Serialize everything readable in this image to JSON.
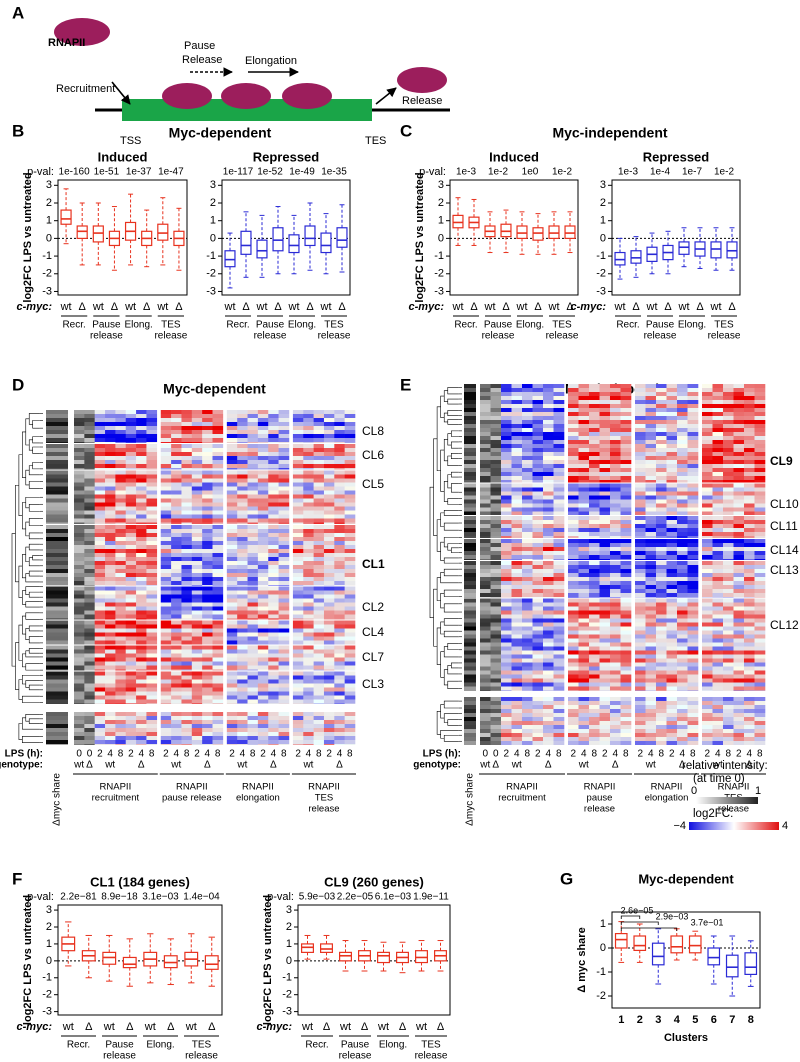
{
  "panel_labels": [
    "A",
    "B",
    "C",
    "D",
    "E",
    "F",
    "G"
  ],
  "panel_titles": {
    "B": "Myc-dependent",
    "C": "Myc-independent"
  },
  "diagram": {
    "rnapii": "RNAPII",
    "recruitment": "Recruitment",
    "pause_release": [
      "Pause",
      "Release"
    ],
    "elongation": "Elongation",
    "release": "Release",
    "tss": "TSS",
    "tes": "TES"
  },
  "chart_data": [
    {
      "type": "box",
      "title": "Induced",
      "pval_label": "p-val:",
      "pvals": [
        "1e-160",
        "1e-51",
        "1e-37",
        "1e-47"
      ],
      "ylabel": "log2FC LPS vs untreated",
      "genotype_label": "c-myc:",
      "color": "#e8321e",
      "categories": [
        "wt",
        "Δ",
        "wt",
        "Δ",
        "wt",
        "Δ",
        "wt",
        "Δ"
      ],
      "groups": [
        [
          "Recr."
        ],
        [
          "Pause",
          "release"
        ],
        [
          "Elong."
        ],
        [
          "TES",
          "release"
        ]
      ],
      "ylim": [
        -3.2,
        3.3
      ],
      "yticks": [
        3,
        2,
        1,
        0,
        -1,
        -2,
        -3
      ],
      "boxes": [
        [
          -0.3,
          0.8,
          1.1,
          1.6,
          2.8
        ],
        [
          -1.5,
          0,
          0.4,
          0.7,
          2.0
        ],
        [
          -1.5,
          -0.2,
          0.3,
          0.7,
          2.0
        ],
        [
          -1.8,
          -0.4,
          0,
          0.4,
          1.8
        ],
        [
          -1.5,
          -0.1,
          0.4,
          0.9,
          2.5
        ],
        [
          -1.6,
          -0.4,
          0,
          0.4,
          1.6
        ],
        [
          -1.5,
          -0.1,
          0.3,
          0.8,
          2.3
        ],
        [
          -1.8,
          -0.4,
          0,
          0.4,
          1.7
        ]
      ]
    },
    {
      "type": "box",
      "title": "Repressed",
      "pvals": [
        "1e-117",
        "1e-52",
        "1e-49",
        "1e-35"
      ],
      "color": "#2a2ad6",
      "categories": [
        "wt",
        "Δ",
        "wt",
        "Δ",
        "wt",
        "Δ",
        "wt",
        "Δ"
      ],
      "groups": [
        [
          "Recr."
        ],
        [
          "Pause",
          "release"
        ],
        [
          "Elong."
        ],
        [
          "TES",
          "release"
        ]
      ],
      "ylim": [
        -3.2,
        3.3
      ],
      "yticks": [
        3,
        2,
        1,
        0,
        -1,
        -2,
        -3
      ],
      "boxes": [
        [
          -2.8,
          -1.6,
          -1.2,
          -0.7,
          0.3
        ],
        [
          -2.2,
          -0.9,
          -0.4,
          0.4,
          1.5
        ],
        [
          -2.2,
          -1.1,
          -0.7,
          -0.1,
          1.3
        ],
        [
          -2.0,
          -0.7,
          -0.1,
          0.6,
          1.8
        ],
        [
          -2.0,
          -0.8,
          -0.4,
          0.2,
          1.3
        ],
        [
          -1.8,
          -0.4,
          0,
          0.7,
          2.0
        ],
        [
          -2.0,
          -0.8,
          -0.4,
          0.3,
          1.4
        ],
        [
          -1.9,
          -0.5,
          -0.1,
          0.6,
          1.9
        ]
      ]
    },
    {
      "type": "box",
      "title": "Induced",
      "pval_label": "p-val:",
      "pvals": [
        "1e-3",
        "1e-2",
        "1e0",
        "1e-2"
      ],
      "ylabel": "log2FC LPS vs untreated",
      "genotype_label": "c-myc:",
      "color": "#e8321e",
      "categories": [
        "wt",
        "Δ",
        "wt",
        "Δ",
        "wt",
        "Δ",
        "wt",
        "Δ"
      ],
      "groups": [
        [
          "Recr."
        ],
        [
          "Pause",
          "release"
        ],
        [
          "Elong."
        ],
        [
          "TES",
          "release"
        ]
      ],
      "ylim": [
        -3.2,
        3.3
      ],
      "yticks": [
        3,
        2,
        1,
        0,
        -1,
        -2,
        -3
      ],
      "boxes": [
        [
          -0.4,
          0.6,
          0.9,
          1.3,
          2.3
        ],
        [
          -0.4,
          0.6,
          0.9,
          1.2,
          2.2
        ],
        [
          -0.8,
          0.1,
          0.4,
          0.7,
          1.5
        ],
        [
          -0.8,
          0.1,
          0.4,
          0.8,
          1.6
        ],
        [
          -0.9,
          0,
          0.3,
          0.7,
          1.5
        ],
        [
          -0.9,
          -0.1,
          0.3,
          0.6,
          1.4
        ],
        [
          -0.9,
          0,
          0.3,
          0.7,
          1.5
        ],
        [
          -0.8,
          0,
          0.3,
          0.7,
          1.5
        ]
      ]
    },
    {
      "type": "box",
      "title": "Repressed",
      "pvals": [
        "1e-3",
        "1e-4",
        "1e-7",
        "1e-2"
      ],
      "genotype_label": "c-myc:",
      "color": "#2a2ad6",
      "categories": [
        "wt",
        "Δ",
        "wt",
        "Δ",
        "wt",
        "Δ",
        "wt",
        "Δ"
      ],
      "groups": [
        [
          "Recr."
        ],
        [
          "Pause",
          "release"
        ],
        [
          "Elong."
        ],
        [
          "TES",
          "release"
        ]
      ],
      "ylim": [
        -3.2,
        3.3
      ],
      "yticks": [
        3,
        2,
        1,
        0,
        -1,
        -2,
        -3
      ],
      "boxes": [
        [
          -2.3,
          -1.5,
          -1.2,
          -0.8,
          0
        ],
        [
          -2.2,
          -1.4,
          -1.1,
          -0.7,
          0.1
        ],
        [
          -2.0,
          -1.3,
          -0.9,
          -0.5,
          0.3
        ],
        [
          -2.0,
          -1.2,
          -0.8,
          -0.4,
          0.4
        ],
        [
          -1.6,
          -0.9,
          -0.5,
          -0.2,
          0.6
        ],
        [
          -1.7,
          -1.0,
          -0.6,
          -0.2,
          0.6
        ],
        [
          -1.8,
          -1.1,
          -0.6,
          -0.2,
          0.6
        ],
        [
          -1.8,
          -1.1,
          -0.7,
          -0.2,
          0.6
        ]
      ]
    },
    {
      "type": "box",
      "title": "CL1 (184 genes)",
      "pval_label": "p-val:",
      "pvals": [
        "2.2e−81",
        "8.9e−18",
        "3.1e−03",
        "1.4e−04"
      ],
      "ylabel": "log2FC LPS vs untreated",
      "genotype_label": "c-myc:",
      "color": "#e8321e",
      "categories": [
        "wt",
        "Δ",
        "wt",
        "Δ",
        "wt",
        "Δ",
        "wt",
        "Δ"
      ],
      "groups": [
        [
          "Recr."
        ],
        [
          "Pause",
          "release"
        ],
        [
          "Elong."
        ],
        [
          "TES",
          "release"
        ]
      ],
      "ylim": [
        -3.2,
        3.3
      ],
      "yticks": [
        3,
        2,
        1,
        0,
        -1,
        -2,
        -3
      ],
      "boxes": [
        [
          -0.3,
          0.6,
          1.0,
          1.4,
          2.3
        ],
        [
          -1.0,
          0,
          0.3,
          0.6,
          1.5
        ],
        [
          -1.2,
          -0.2,
          0.2,
          0.5,
          1.5
        ],
        [
          -1.5,
          -0.4,
          -0.2,
          0.2,
          1.3
        ],
        [
          -1.3,
          -0.3,
          0.1,
          0.5,
          1.6
        ],
        [
          -1.4,
          -0.4,
          -0.1,
          0.3,
          1.3
        ],
        [
          -1.3,
          -0.3,
          0.1,
          0.5,
          1.6
        ],
        [
          -1.5,
          -0.5,
          -0.2,
          0.3,
          1.4
        ]
      ]
    },
    {
      "type": "box",
      "title": "CL9 (260 genes)",
      "pval_label": "p-val:",
      "pvals": [
        "5.9e−03",
        "2.2e−05",
        "6.1e−03",
        "1.9e−11"
      ],
      "ylabel": "log2FC LPS vs untreated",
      "genotype_label": "c-myc:",
      "color": "#e8321e",
      "categories": [
        "wt",
        "Δ",
        "wt",
        "Δ",
        "wt",
        "Δ",
        "wt",
        "Δ"
      ],
      "groups": [
        [
          "Recr."
        ],
        [
          "Pause",
          "release"
        ],
        [
          "Elong."
        ],
        [
          "TES",
          "release"
        ]
      ],
      "ylim": [
        -3.2,
        3.3
      ],
      "yticks": [
        3,
        2,
        1,
        0,
        -1,
        -2,
        -3
      ],
      "boxes": [
        [
          0.1,
          0.5,
          0.8,
          1.0,
          1.5
        ],
        [
          0.1,
          0.5,
          0.7,
          1.0,
          1.5
        ],
        [
          -0.6,
          0,
          0.3,
          0.5,
          1.2
        ],
        [
          -0.6,
          0,
          0.3,
          0.6,
          1.2
        ],
        [
          -0.6,
          -0.1,
          0.3,
          0.5,
          1.1
        ],
        [
          -0.7,
          -0.1,
          0.2,
          0.5,
          1.1
        ],
        [
          -0.6,
          -0.1,
          0.2,
          0.6,
          1.2
        ],
        [
          -0.6,
          0,
          0.3,
          0.6,
          1.2
        ]
      ]
    },
    {
      "type": "box",
      "title": "Myc-dependent",
      "ylabel": "Δ myc share",
      "xlabel": "Clusters",
      "categories": [
        "1",
        "2",
        "3",
        "4",
        "5",
        "6",
        "7",
        "8"
      ],
      "colors": [
        "#e8321e",
        "#e8321e",
        "#2a2ad6",
        "#e8321e",
        "#e8321e",
        "#2a2ad6",
        "#2a2ad6",
        "#2a2ad6"
      ],
      "comparisons": [
        "2.6e−05",
        "2.9e−03",
        "3.7e−01"
      ],
      "ylim": [
        -2.5,
        1.5
      ],
      "yticks": [
        1,
        0,
        -1,
        -2
      ],
      "boxes": [
        [
          -0.6,
          0,
          0.35,
          0.6,
          1.1
        ],
        [
          -0.6,
          -0.1,
          0.1,
          0.5,
          1.0
        ],
        [
          -1.5,
          -0.7,
          -0.35,
          0.2,
          0.8
        ],
        [
          -0.5,
          -0.2,
          0.05,
          0.5,
          0.8
        ],
        [
          -0.5,
          -0.2,
          0.1,
          0.5,
          0.7
        ],
        [
          -1.5,
          -0.7,
          -0.4,
          0,
          0.5
        ],
        [
          -2.0,
          -1.2,
          -0.8,
          -0.3,
          0.5
        ],
        [
          -1.6,
          -1.1,
          -0.8,
          -0.2,
          0.3
        ]
      ]
    }
  ],
  "heatmaps": [
    {
      "title": "Myc-dependent",
      "clusters": [
        {
          "label": "CL8"
        },
        {
          "label": "CL6"
        },
        {
          "label": "CL5"
        },
        {
          "label": "CL1",
          "bold": true
        },
        {
          "label": "CL2"
        },
        {
          "label": "CL4"
        },
        {
          "label": "CL7"
        },
        {
          "label": "CL3"
        }
      ],
      "lps_label": "LPS (h):",
      "genotype_label": "genotype:",
      "share_label": "Δmyc share",
      "lps": [
        [
          0,
          0,
          2,
          4,
          8,
          2,
          4,
          8
        ],
        [
          2,
          4,
          8,
          2,
          4,
          8
        ],
        [
          2,
          4,
          8,
          2,
          4,
          8
        ],
        [
          2,
          4,
          8,
          2,
          4,
          8
        ]
      ],
      "genotypes": [
        [
          "wt",
          "Δ",
          "wt",
          "Δ"
        ],
        [
          "wt",
          "Δ"
        ],
        [
          "wt",
          "Δ"
        ],
        [
          "wt",
          "Δ"
        ]
      ],
      "groups": [
        [
          "RNAPII",
          "recruitment"
        ],
        [
          "RNAPII",
          "pause release"
        ],
        [
          "RNAPII",
          "elongation"
        ],
        [
          "RNAPII",
          "TES",
          "release"
        ]
      ]
    },
    {
      "title": "Myc-independent",
      "clusters": [
        {
          "label": "CL9",
          "bold": true
        },
        {
          "label": "CL10"
        },
        {
          "label": "CL11"
        },
        {
          "label": "CL14"
        },
        {
          "label": "CL13"
        },
        {
          "label": "CL12"
        }
      ],
      "lps_label": "LPS (h):",
      "genotype_label": "genotype:",
      "share_label": "Δmyc share",
      "lps": [
        [
          0,
          0,
          2,
          4,
          8,
          2,
          4,
          8
        ],
        [
          2,
          4,
          8,
          2,
          4,
          8
        ],
        [
          2,
          4,
          8,
          2,
          4,
          8
        ],
        [
          2,
          4,
          8,
          2,
          4,
          8
        ]
      ],
      "genotypes": [
        [
          "wt",
          "Δ",
          "wt",
          "Δ"
        ],
        [
          "wt",
          "Δ"
        ],
        [
          "wt",
          "Δ"
        ],
        [
          "wt",
          "Δ"
        ]
      ],
      "groups": [
        [
          "RNAPII",
          "recruitment"
        ],
        [
          "RNAPII",
          "pause",
          "release"
        ],
        [
          "RNAPII",
          "elongation"
        ],
        [
          "RNAPII",
          "TES",
          "release"
        ]
      ]
    }
  ],
  "legend": {
    "title": "relative intensity:",
    "subtitle": "(at time 0)",
    "gray_min": "0",
    "gray_max": "1",
    "log2fc": "log2FC:",
    "min": "−4",
    "max": "4"
  }
}
